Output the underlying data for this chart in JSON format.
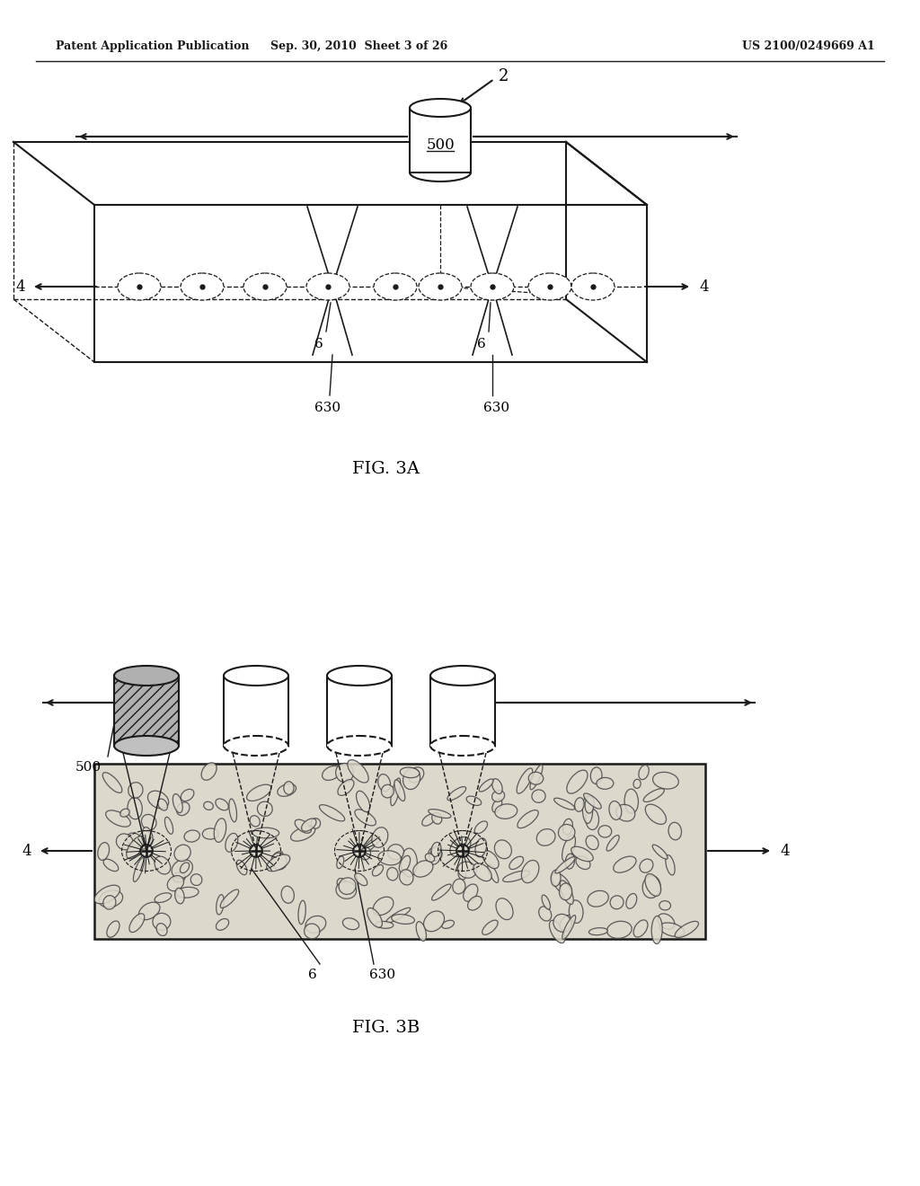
{
  "header_left": "Patent Application Publication",
  "header_mid": "Sep. 30, 2010  Sheet 3 of 26",
  "header_right": "US 2100/0249669 A1",
  "fig3a_label": "FIG. 3A",
  "fig3b_label": "FIG. 3B",
  "label_2": "2",
  "label_4": "4",
  "label_500": "500",
  "label_6": "6",
  "label_630": "630",
  "bg_color": "#ffffff",
  "line_color": "#1a1a1a",
  "tissue_color": "#ddd8cc"
}
